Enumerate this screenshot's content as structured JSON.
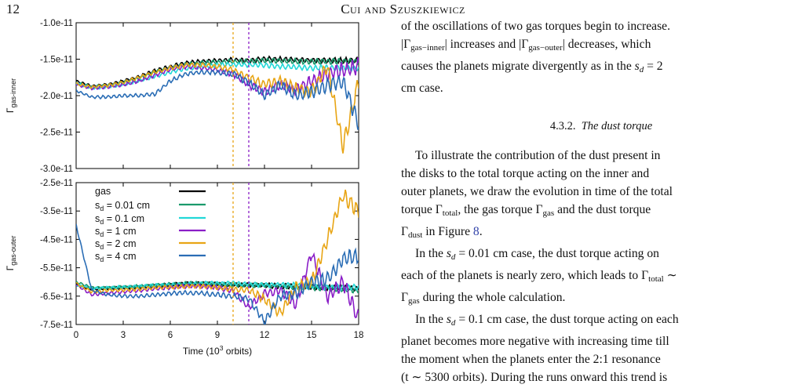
{
  "header": {
    "page_number": "12",
    "running_head": "Cui and Szuszkiewicz"
  },
  "figure": {
    "legend_gas": "gas",
    "legend_sd_prefix": "s",
    "legend_sd_sub": "d",
    "legend_sd_values": [
      " = 0.01 cm",
      " = 0.1 cm",
      " = 1 cm",
      " = 2 cm",
      " = 4 cm"
    ],
    "top_ylabel_main": "Γ",
    "top_ylabel_sub": "gas-inner",
    "bottom_ylabel_main": "Γ",
    "bottom_ylabel_sub": "gas-outer",
    "xlabel_pre": "Time (10",
    "xlabel_sup": "3",
    "xlabel_post": " orbits)"
  },
  "chart_data": [
    {
      "type": "line",
      "panel": "top",
      "ylabel": "Γgas-inner",
      "xlim": [
        0,
        18
      ],
      "ylim": [
        -3e-11,
        -1e-11
      ],
      "yticks": [
        "-1.0e-11",
        "-1.5e-11",
        "-2.0e-11",
        "-2.5e-11",
        "-3.0e-11"
      ],
      "ytick_values": [
        -1e-11,
        -1.5e-11,
        -2e-11,
        -2.5e-11,
        -3e-11
      ],
      "vlines": [
        {
          "x": 10,
          "color": "#e8a515"
        },
        {
          "x": 11,
          "color": "#8a1ec7"
        }
      ],
      "series": [
        {
          "name": "gas",
          "color": "#000000",
          "x": [
            0,
            1,
            2,
            3,
            4,
            5,
            6,
            7,
            8,
            9,
            10,
            11,
            12,
            13,
            14,
            15,
            16,
            17,
            18
          ],
          "y": [
            -1.8e-11,
            -1.87e-11,
            -1.85e-11,
            -1.8e-11,
            -1.74e-11,
            -1.66e-11,
            -1.6e-11,
            -1.55e-11,
            -1.53e-11,
            -1.52e-11,
            -1.51e-11,
            -1.52e-11,
            -1.5e-11,
            -1.5e-11,
            -1.51e-11,
            -1.52e-11,
            -1.52e-11,
            -1.52e-11,
            -1.52e-11
          ]
        },
        {
          "name": "s_d = 0.01 cm",
          "color": "#1a9a6c",
          "x": [
            0,
            1,
            2,
            3,
            4,
            5,
            6,
            7,
            8,
            9,
            10,
            11,
            12,
            13,
            14,
            15,
            16,
            17,
            18
          ],
          "y": [
            -1.82e-11,
            -1.88e-11,
            -1.86e-11,
            -1.82e-11,
            -1.76e-11,
            -1.68e-11,
            -1.62e-11,
            -1.57e-11,
            -1.55e-11,
            -1.54e-11,
            -1.53e-11,
            -1.53e-11,
            -1.52e-11,
            -1.52e-11,
            -1.53e-11,
            -1.53e-11,
            -1.53e-11,
            -1.53e-11,
            -1.53e-11
          ]
        },
        {
          "name": "s_d = 0.1 cm",
          "color": "#22d8d8",
          "x": [
            0,
            1,
            2,
            3,
            4,
            5,
            6,
            7,
            8,
            9,
            10,
            11,
            12,
            13,
            14,
            15,
            16,
            17,
            18
          ],
          "y": [
            -1.83e-11,
            -1.9e-11,
            -1.88e-11,
            -1.85e-11,
            -1.8e-11,
            -1.74e-11,
            -1.68e-11,
            -1.63e-11,
            -1.6e-11,
            -1.58e-11,
            -1.57e-11,
            -1.58e-11,
            -1.58e-11,
            -1.6e-11,
            -1.61e-11,
            -1.62e-11,
            -1.62e-11,
            -1.62e-11,
            -1.62e-11
          ]
        },
        {
          "name": "s_d = 1 cm",
          "color": "#8a1ec7",
          "x": [
            0,
            1,
            2,
            3,
            4,
            5,
            6,
            7,
            8,
            9,
            10,
            11,
            12,
            13,
            14,
            15,
            16,
            17,
            18
          ],
          "y": [
            -1.85e-11,
            -1.9e-11,
            -1.88e-11,
            -1.85e-11,
            -1.8e-11,
            -1.72e-11,
            -1.64e-11,
            -1.6e-11,
            -1.62e-11,
            -1.65e-11,
            -1.7e-11,
            -1.85e-11,
            -1.95e-11,
            -1.85e-11,
            -1.92e-11,
            -1.8e-11,
            -1.7e-11,
            -1.65e-11,
            -1.6e-11
          ]
        },
        {
          "name": "s_d = 2 cm",
          "color": "#e8a515",
          "x": [
            0,
            1,
            2,
            3,
            4,
            5,
            6,
            7,
            8,
            9,
            10,
            11,
            12,
            13,
            14,
            15,
            16,
            17,
            18
          ],
          "y": [
            -1.84e-11,
            -1.88e-11,
            -1.86e-11,
            -1.82e-11,
            -1.75e-11,
            -1.68e-11,
            -1.62e-11,
            -1.58e-11,
            -1.58e-11,
            -1.6e-11,
            -1.65e-11,
            -1.75e-11,
            -1.85e-11,
            -1.8e-11,
            -1.9e-11,
            -1.95e-11,
            -1.6e-11,
            -2.7e-11,
            -1.8e-11
          ]
        },
        {
          "name": "s_d = 4 cm",
          "color": "#2a6db5",
          "x": [
            0,
            1,
            2,
            3,
            4,
            5,
            6,
            7,
            8,
            9,
            10,
            11,
            12,
            13,
            14,
            15,
            16,
            17,
            18
          ],
          "y": [
            -1.93e-11,
            -2.02e-11,
            -2.02e-11,
            -2e-11,
            -2e-11,
            -1.98e-11,
            -1.8e-11,
            -1.7e-11,
            -1.68e-11,
            -1.68e-11,
            -1.7e-11,
            -1.82e-11,
            -2e-11,
            -1.85e-11,
            -2e-11,
            -1.95e-11,
            -1.85e-11,
            -1.8e-11,
            -2.4e-11
          ]
        }
      ]
    },
    {
      "type": "line",
      "panel": "bottom",
      "ylabel": "Γgas-outer",
      "xlabel": "Time (10^3 orbits)",
      "xlim": [
        0,
        18
      ],
      "ylim": [
        -7.5e-11,
        -2.5e-11
      ],
      "xticks": [
        "0",
        "3",
        "6",
        "9",
        "12",
        "15",
        "18"
      ],
      "xtick_values": [
        0,
        3,
        6,
        9,
        12,
        15,
        18
      ],
      "yticks": [
        "-2.5e-11",
        "-3.5e-11",
        "-4.5e-11",
        "-5.5e-11",
        "-6.5e-11",
        "-7.5e-11"
      ],
      "ytick_values": [
        -2.5e-11,
        -3.5e-11,
        -4.5e-11,
        -5.5e-11,
        -6.5e-11,
        -7.5e-11
      ],
      "vlines": [
        {
          "x": 10,
          "color": "#e8a515"
        },
        {
          "x": 11,
          "color": "#8a1ec7"
        }
      ],
      "legend": "top-left",
      "series": [
        {
          "name": "gas",
          "color": "#000000",
          "x": [
            0,
            1,
            2,
            3,
            4,
            5,
            6,
            7,
            8,
            9,
            10,
            11,
            12,
            13,
            14,
            15,
            16,
            17,
            18
          ],
          "y": [
            -6.1e-11,
            -6.25e-11,
            -6.22e-11,
            -6.2e-11,
            -6.18e-11,
            -6.15e-11,
            -6.1e-11,
            -6.05e-11,
            -6.05e-11,
            -6.08e-11,
            -6.1e-11,
            -6.1e-11,
            -6.12e-11,
            -6.15e-11,
            -6.15e-11,
            -6.18e-11,
            -6.2e-11,
            -6.2e-11,
            -6.25e-11
          ]
        },
        {
          "name": "s_d = 0.01 cm",
          "color": "#1a9a6c",
          "x": [
            0,
            1,
            2,
            3,
            4,
            5,
            6,
            7,
            8,
            9,
            10,
            11,
            12,
            13,
            14,
            15,
            16,
            17,
            18
          ],
          "y": [
            -6e-11,
            -6.2e-11,
            -6.2e-11,
            -6.18e-11,
            -6.15e-11,
            -6.12e-11,
            -6.08e-11,
            -6.05e-11,
            -6.05e-11,
            -6.08e-11,
            -6.1e-11,
            -6.12e-11,
            -6.12e-11,
            -6.15e-11,
            -6.18e-11,
            -6.2e-11,
            -6.22e-11,
            -6.25e-11,
            -6.3e-11
          ]
        },
        {
          "name": "s_d = 0.1 cm",
          "color": "#22d8d8",
          "x": [
            0,
            1,
            2,
            3,
            4,
            5,
            6,
            7,
            8,
            9,
            10,
            11,
            12,
            13,
            14,
            15,
            16,
            17,
            18
          ],
          "y": [
            -6.1e-11,
            -6.22e-11,
            -6.2e-11,
            -6.18e-11,
            -6.15e-11,
            -6.12e-11,
            -6.1e-11,
            -6.08e-11,
            -6.05e-11,
            -6.05e-11,
            -6.05e-11,
            -6.08e-11,
            -6.1e-11,
            -6.1e-11,
            -6.12e-11,
            -6.15e-11,
            -6.18e-11,
            -6.2e-11,
            -6.2e-11
          ]
        },
        {
          "name": "s_d = 1 cm",
          "color": "#8a1ec7",
          "x": [
            0,
            1,
            2,
            3,
            4,
            5,
            6,
            7,
            8,
            9,
            10,
            11,
            12,
            13,
            14,
            15,
            16,
            17,
            18
          ],
          "y": [
            -6.1e-11,
            -6.45e-11,
            -6.4e-11,
            -6.35e-11,
            -6.3e-11,
            -6.25e-11,
            -6.2e-11,
            -6.15e-11,
            -6.15e-11,
            -6.2e-11,
            -6.3e-11,
            -6.9e-11,
            -6.4e-11,
            -6.3e-11,
            -6.8e-11,
            -5e-11,
            -6.5e-11,
            -6e-11,
            -7.3e-11
          ]
        },
        {
          "name": "s_d = 2 cm",
          "color": "#e8a515",
          "x": [
            0,
            1,
            2,
            3,
            4,
            5,
            6,
            7,
            8,
            9,
            10,
            11,
            12,
            13,
            14,
            15,
            16,
            17,
            18
          ],
          "y": [
            -6.05e-11,
            -6.35e-11,
            -6.3e-11,
            -6.28e-11,
            -6.25e-11,
            -6.2e-11,
            -6.18e-11,
            -6.15e-11,
            -6.15e-11,
            -6.2e-11,
            -6.25e-11,
            -6.3e-11,
            -6.6e-11,
            -7.1e-11,
            -6.2e-11,
            -6e-11,
            -4.5e-11,
            -2.95e-11,
            -3.5e-11
          ]
        },
        {
          "name": "s_d = 4 cm",
          "color": "#2a6db5",
          "x": [
            0,
            1,
            2,
            3,
            4,
            5,
            6,
            7,
            8,
            9,
            10,
            11,
            12,
            13,
            14,
            15,
            16,
            17,
            18
          ],
          "y": [
            -4e-11,
            -6.3e-11,
            -6.45e-11,
            -6.5e-11,
            -6.5e-11,
            -6.45e-11,
            -6.4e-11,
            -6.38e-11,
            -6.4e-11,
            -6.45e-11,
            -6.5e-11,
            -6.6e-11,
            -7.4e-11,
            -6.5e-11,
            -6.4e-11,
            -6e-11,
            -5.9e-11,
            -5.2e-11,
            -5.1e-11
          ]
        }
      ]
    }
  ],
  "text": {
    "p1_a": "of the oscillations of two gas torques begin to increase.",
    "p1_b_pre": "|Γ",
    "p1_b_sub1": "gas−inner",
    "p1_b_mid": "| increases and |Γ",
    "p1_b_sub2": "gas−outer",
    "p1_b_post": "| decreases, which",
    "p1_c_pre": "causes the planets migrate divergently as in the ",
    "p1_c_var": "s",
    "p1_c_sub": "d",
    "p1_c_post": " = 2",
    "p1_d": "cm case.",
    "section_number": "4.3.2.",
    "section_title": "The dust torque",
    "p2_a": "To illustrate the contribution of the dust present in",
    "p2_b": "the disks to the total torque acting on the inner and",
    "p2_c": "outer planets, we draw the evolution in time of the total",
    "p2_d_pre": "torque Γ",
    "p2_d_sub1": "total",
    "p2_d_mid": ", the gas torque Γ",
    "p2_d_sub2": "gas",
    "p2_d_post": " and the dust torque",
    "p2_e_pre": "Γ",
    "p2_e_sub": "dust",
    "p2_e_mid": " in Figure ",
    "p2_e_link": "8",
    "p2_e_post": ".",
    "p3_a_pre": "In the ",
    "p3_a_var": "s",
    "p3_a_sub": "d",
    "p3_a_post": " = 0.01 cm case, the dust torque acting on",
    "p3_b_pre": "each of the planets is nearly zero, which leads to Γ",
    "p3_b_sub": "total",
    "p3_b_post": " ∼",
    "p3_c_pre": "Γ",
    "p3_c_sub": "gas",
    "p3_c_post": " during the whole calculation.",
    "p4_a_pre": "In the ",
    "p4_a_var": "s",
    "p4_a_sub": "d",
    "p4_a_post": " = 0.1 cm case, the dust torque acting on each",
    "p4_b": "planet becomes more negative with increasing time till",
    "p4_c": "the moment when the planets enter the 2:1 resonance",
    "p4_d": "(t ∼ 5300 orbits). During the runs onward this trend is"
  }
}
